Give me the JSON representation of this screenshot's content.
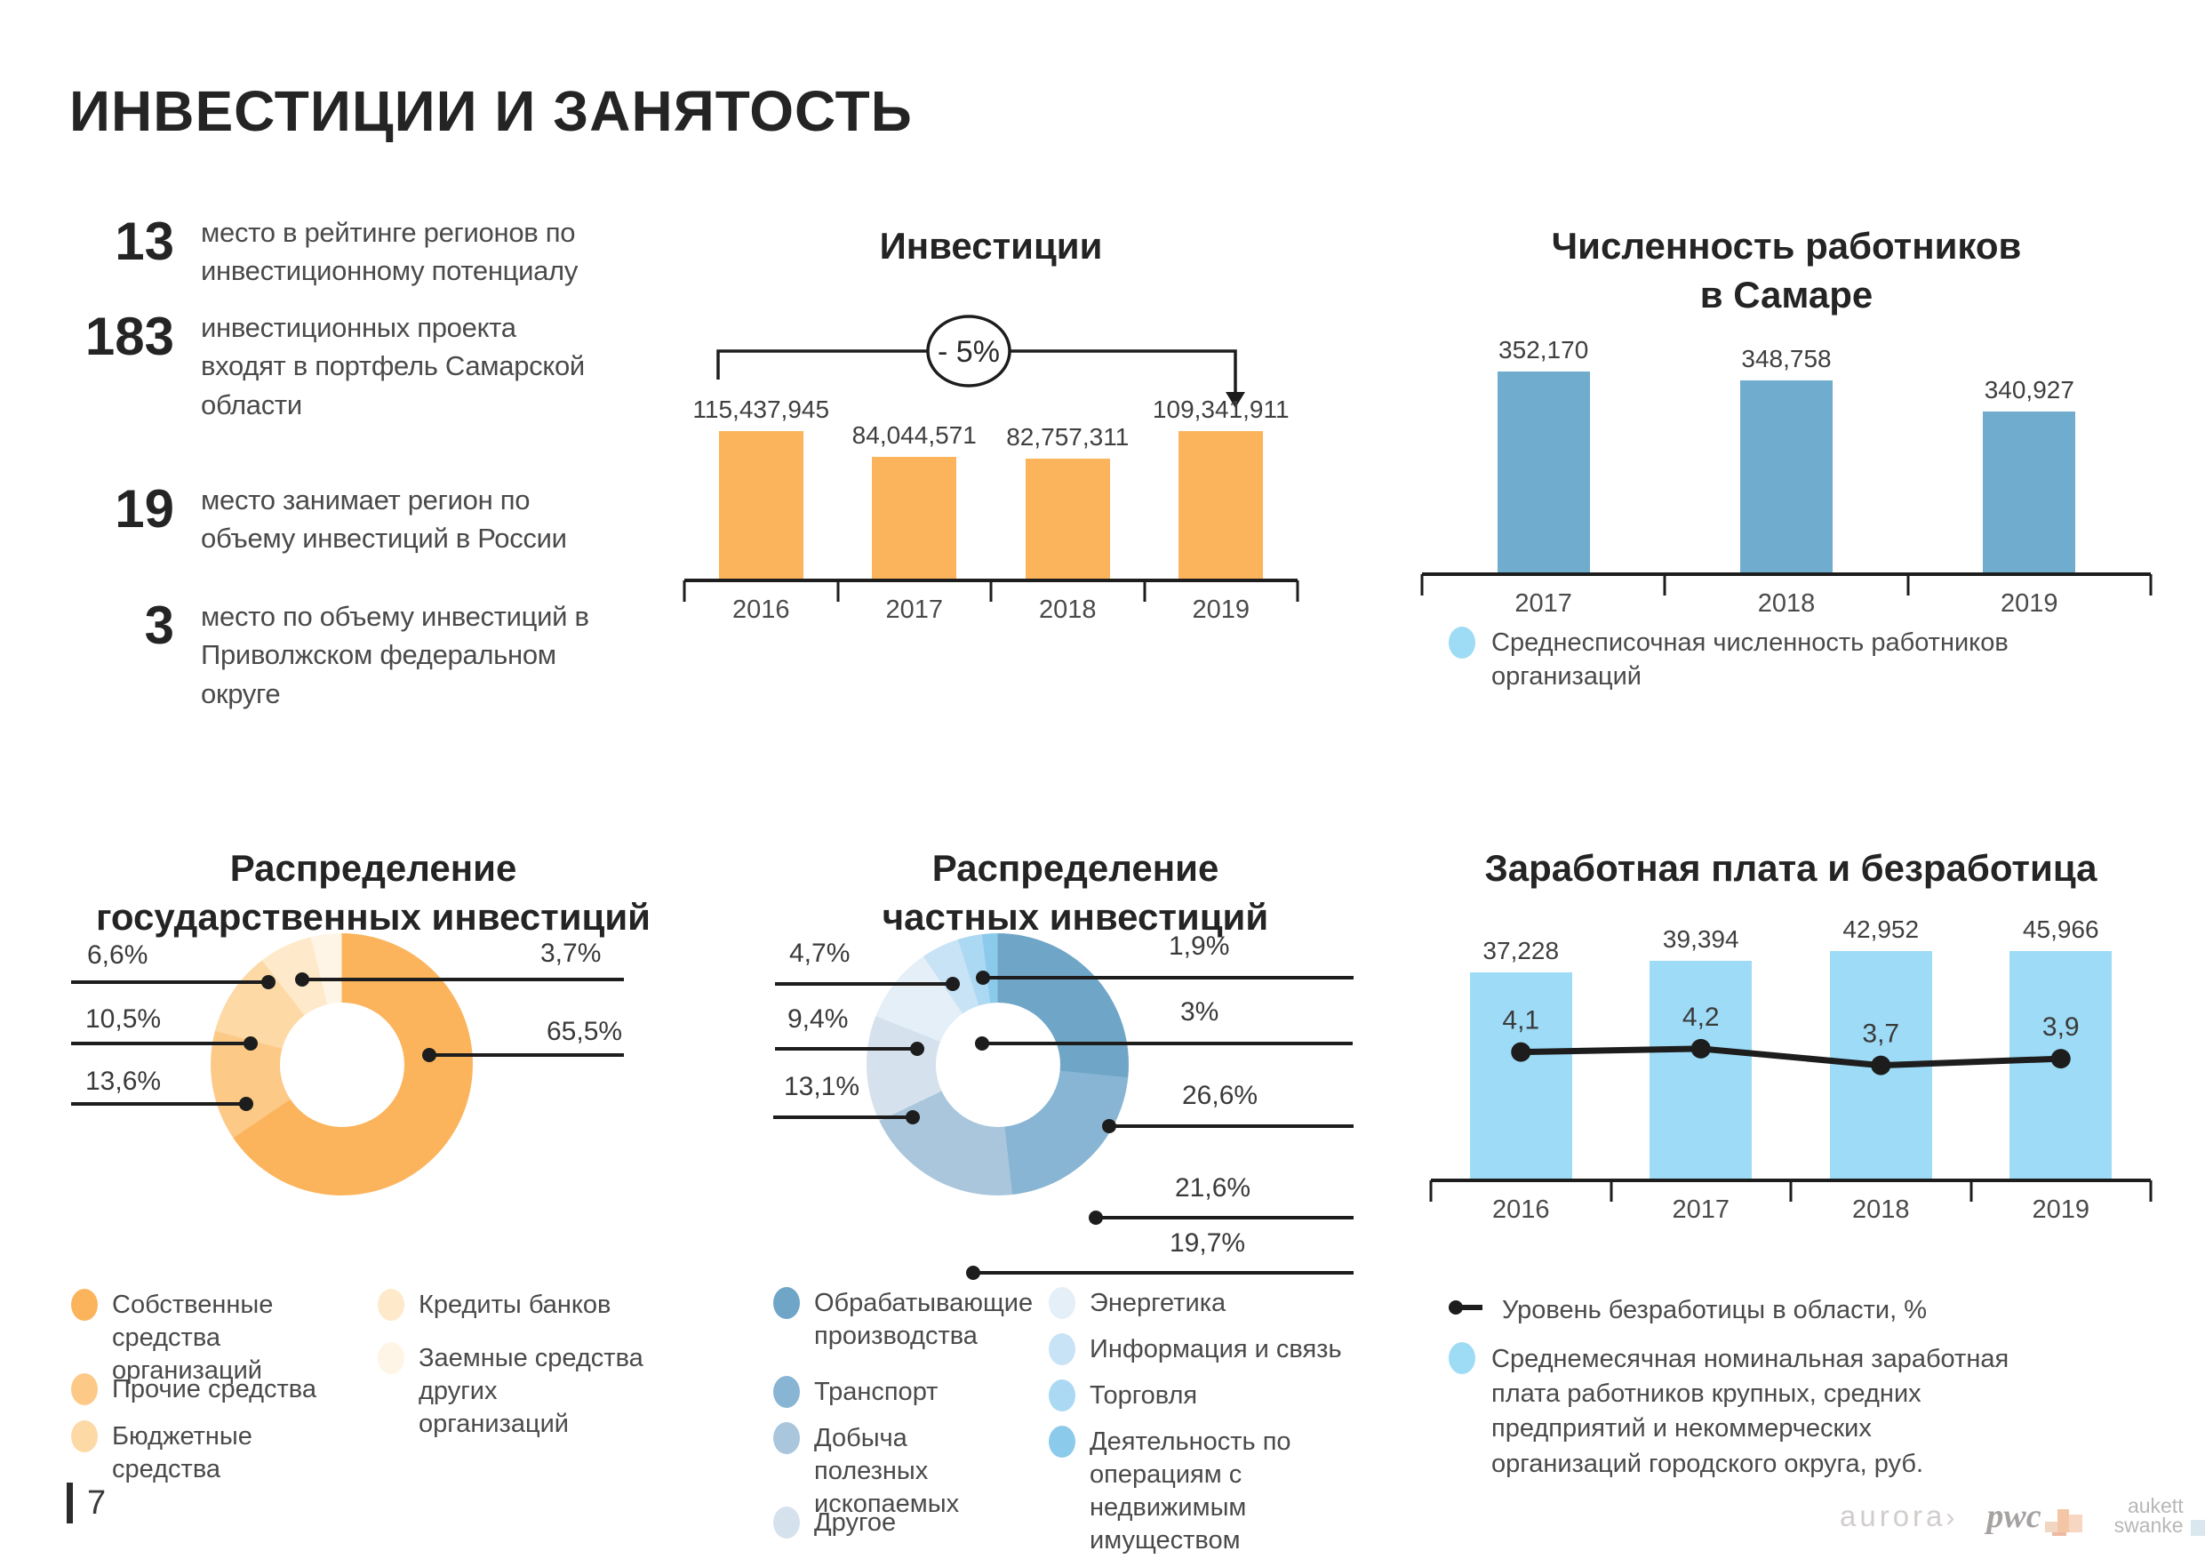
{
  "page": {
    "title": "ИНВЕСТИЦИИ И ЗАНЯТОСТЬ"
  },
  "stats": [
    {
      "value": "13",
      "label": "место в рейтинге регионов по инвестиционному потенциалу"
    },
    {
      "value": "183",
      "label": "инвестиционных проекта входят в портфель Самарской области"
    },
    {
      "value": "19",
      "label": "место занимает регион по объему инвестиций в России"
    },
    {
      "value": "3",
      "label": "место по объему инвестиций в Приволжском федеральном округе"
    }
  ],
  "chart_data": [
    {
      "id": "investments",
      "type": "bar",
      "title": "Инвестиции",
      "annotation": "- 5%",
      "categories": [
        "2016",
        "2017",
        "2018",
        "2019"
      ],
      "series": [
        {
          "kind": "bar",
          "name": "Инвестиции",
          "values": [
            115437945,
            84044571,
            82757311,
            109341911
          ],
          "labels": [
            "115,437,945",
            "84,044,571",
            "82,757,311",
            "109,341,911"
          ],
          "color": "#FBB45C",
          "ylim": [
            0,
            126000000
          ]
        }
      ]
    },
    {
      "id": "workers-samara",
      "type": "bar",
      "title": "Численность работников в Самаре",
      "categories": [
        "2017",
        "2018",
        "2019"
      ],
      "series": [
        {
          "kind": "bar",
          "name": "Среднесписочная численность работников организаций",
          "values": [
            352170,
            348758,
            340927
          ],
          "labels": [
            "352,170",
            "348,758",
            "340,927"
          ],
          "color": "#6FACCE",
          "ylim": [
            300000,
            360000
          ]
        }
      ],
      "legend": [
        {
          "label": "Среднесписочная численность работников организаций",
          "color": "#9EDBF4"
        }
      ]
    },
    {
      "id": "gov-investments",
      "type": "pie",
      "title": "Распределение государственных инвестиций",
      "slices": [
        {
          "name": "Собственные средства организаций",
          "pct": 65.5,
          "label": "65,5%",
          "color": "#FBB45C"
        },
        {
          "name": "Прочие средства",
          "pct": 13.6,
          "label": "13,6%",
          "color": "#FDC987"
        },
        {
          "name": "Бюджетные средства",
          "pct": 10.5,
          "label": "10,5%",
          "color": "#FDD9A6"
        },
        {
          "name": "Кредиты банков",
          "pct": 6.6,
          "label": "6,6%",
          "color": "#FEE9CA"
        },
        {
          "name": "Заемные средства других организаций",
          "pct": 3.7,
          "label": "3,7%",
          "color": "#FFF5E6"
        }
      ]
    },
    {
      "id": "private-investments",
      "type": "pie",
      "title": "Распределение частных инвестиций",
      "slices": [
        {
          "name": "Обрабатывающие производства",
          "pct": 26.6,
          "label": "26,6%",
          "color": "#6FA6C8"
        },
        {
          "name": "Транспорт",
          "pct": 21.6,
          "label": "21,6%",
          "color": "#88B5D3"
        },
        {
          "name": "Добыча полезных ископаемых",
          "pct": 19.7,
          "label": "19,7%",
          "color": "#A9C6DC"
        },
        {
          "name": "Другое",
          "pct": 13.1,
          "label": "13,1%",
          "color": "#D5E2EE"
        },
        {
          "name": "Энергетика",
          "pct": 9.4,
          "label": "9,4%",
          "color": "#E4EFF8"
        },
        {
          "name": "Информация и связь",
          "pct": 4.7,
          "label": "4,7%",
          "color": "#C8E3F5"
        },
        {
          "name": "Торговля",
          "pct": 3.0,
          "label": "3%",
          "color": "#ABD8F2"
        },
        {
          "name": "Деятельность по операциям с недвижимым имуществом",
          "pct": 1.9,
          "label": "1,9%",
          "color": "#8CCAEC"
        }
      ]
    },
    {
      "id": "salary-unemployment",
      "type": "bar+line",
      "title": "Заработная плата и безработица",
      "categories": [
        "2016",
        "2017",
        "2018",
        "2019"
      ],
      "series": [
        {
          "kind": "bar",
          "name": "Среднемесячная номинальная заработная плата",
          "values": [
            37228,
            39394,
            42952,
            45966
          ],
          "labels": [
            "37,228",
            "39,394",
            "42,952",
            "45,966"
          ],
          "color": "#9EDBF6",
          "ylim": [
            0,
            47500
          ]
        },
        {
          "kind": "line",
          "name": "Уровень безработицы в области, %",
          "values": [
            4.1,
            4.2,
            3.7,
            3.9
          ],
          "labels": [
            "4,1",
            "4,2",
            "3,7",
            "3,9"
          ],
          "color": "#1d1d1d",
          "ylim": [
            0.3,
            8.2
          ]
        }
      ],
      "legend": [
        {
          "label": "Уровень безработицы в области, %",
          "color": "#1d1d1d",
          "marker": "line-dot"
        },
        {
          "label": "Среднемесячная номинальная заработная плата работников крупных, средних предприятий и некоммерческих организаций городского округа, руб.",
          "color": "#9EDBF4",
          "marker": "dot"
        }
      ]
    }
  ],
  "footer": {
    "page_number": "7",
    "logos": {
      "aurora": "aurora",
      "aurora_chevron": "›",
      "pwc": "pwc",
      "aukett_line1": "aukett",
      "aukett_line2": "swanke"
    }
  }
}
